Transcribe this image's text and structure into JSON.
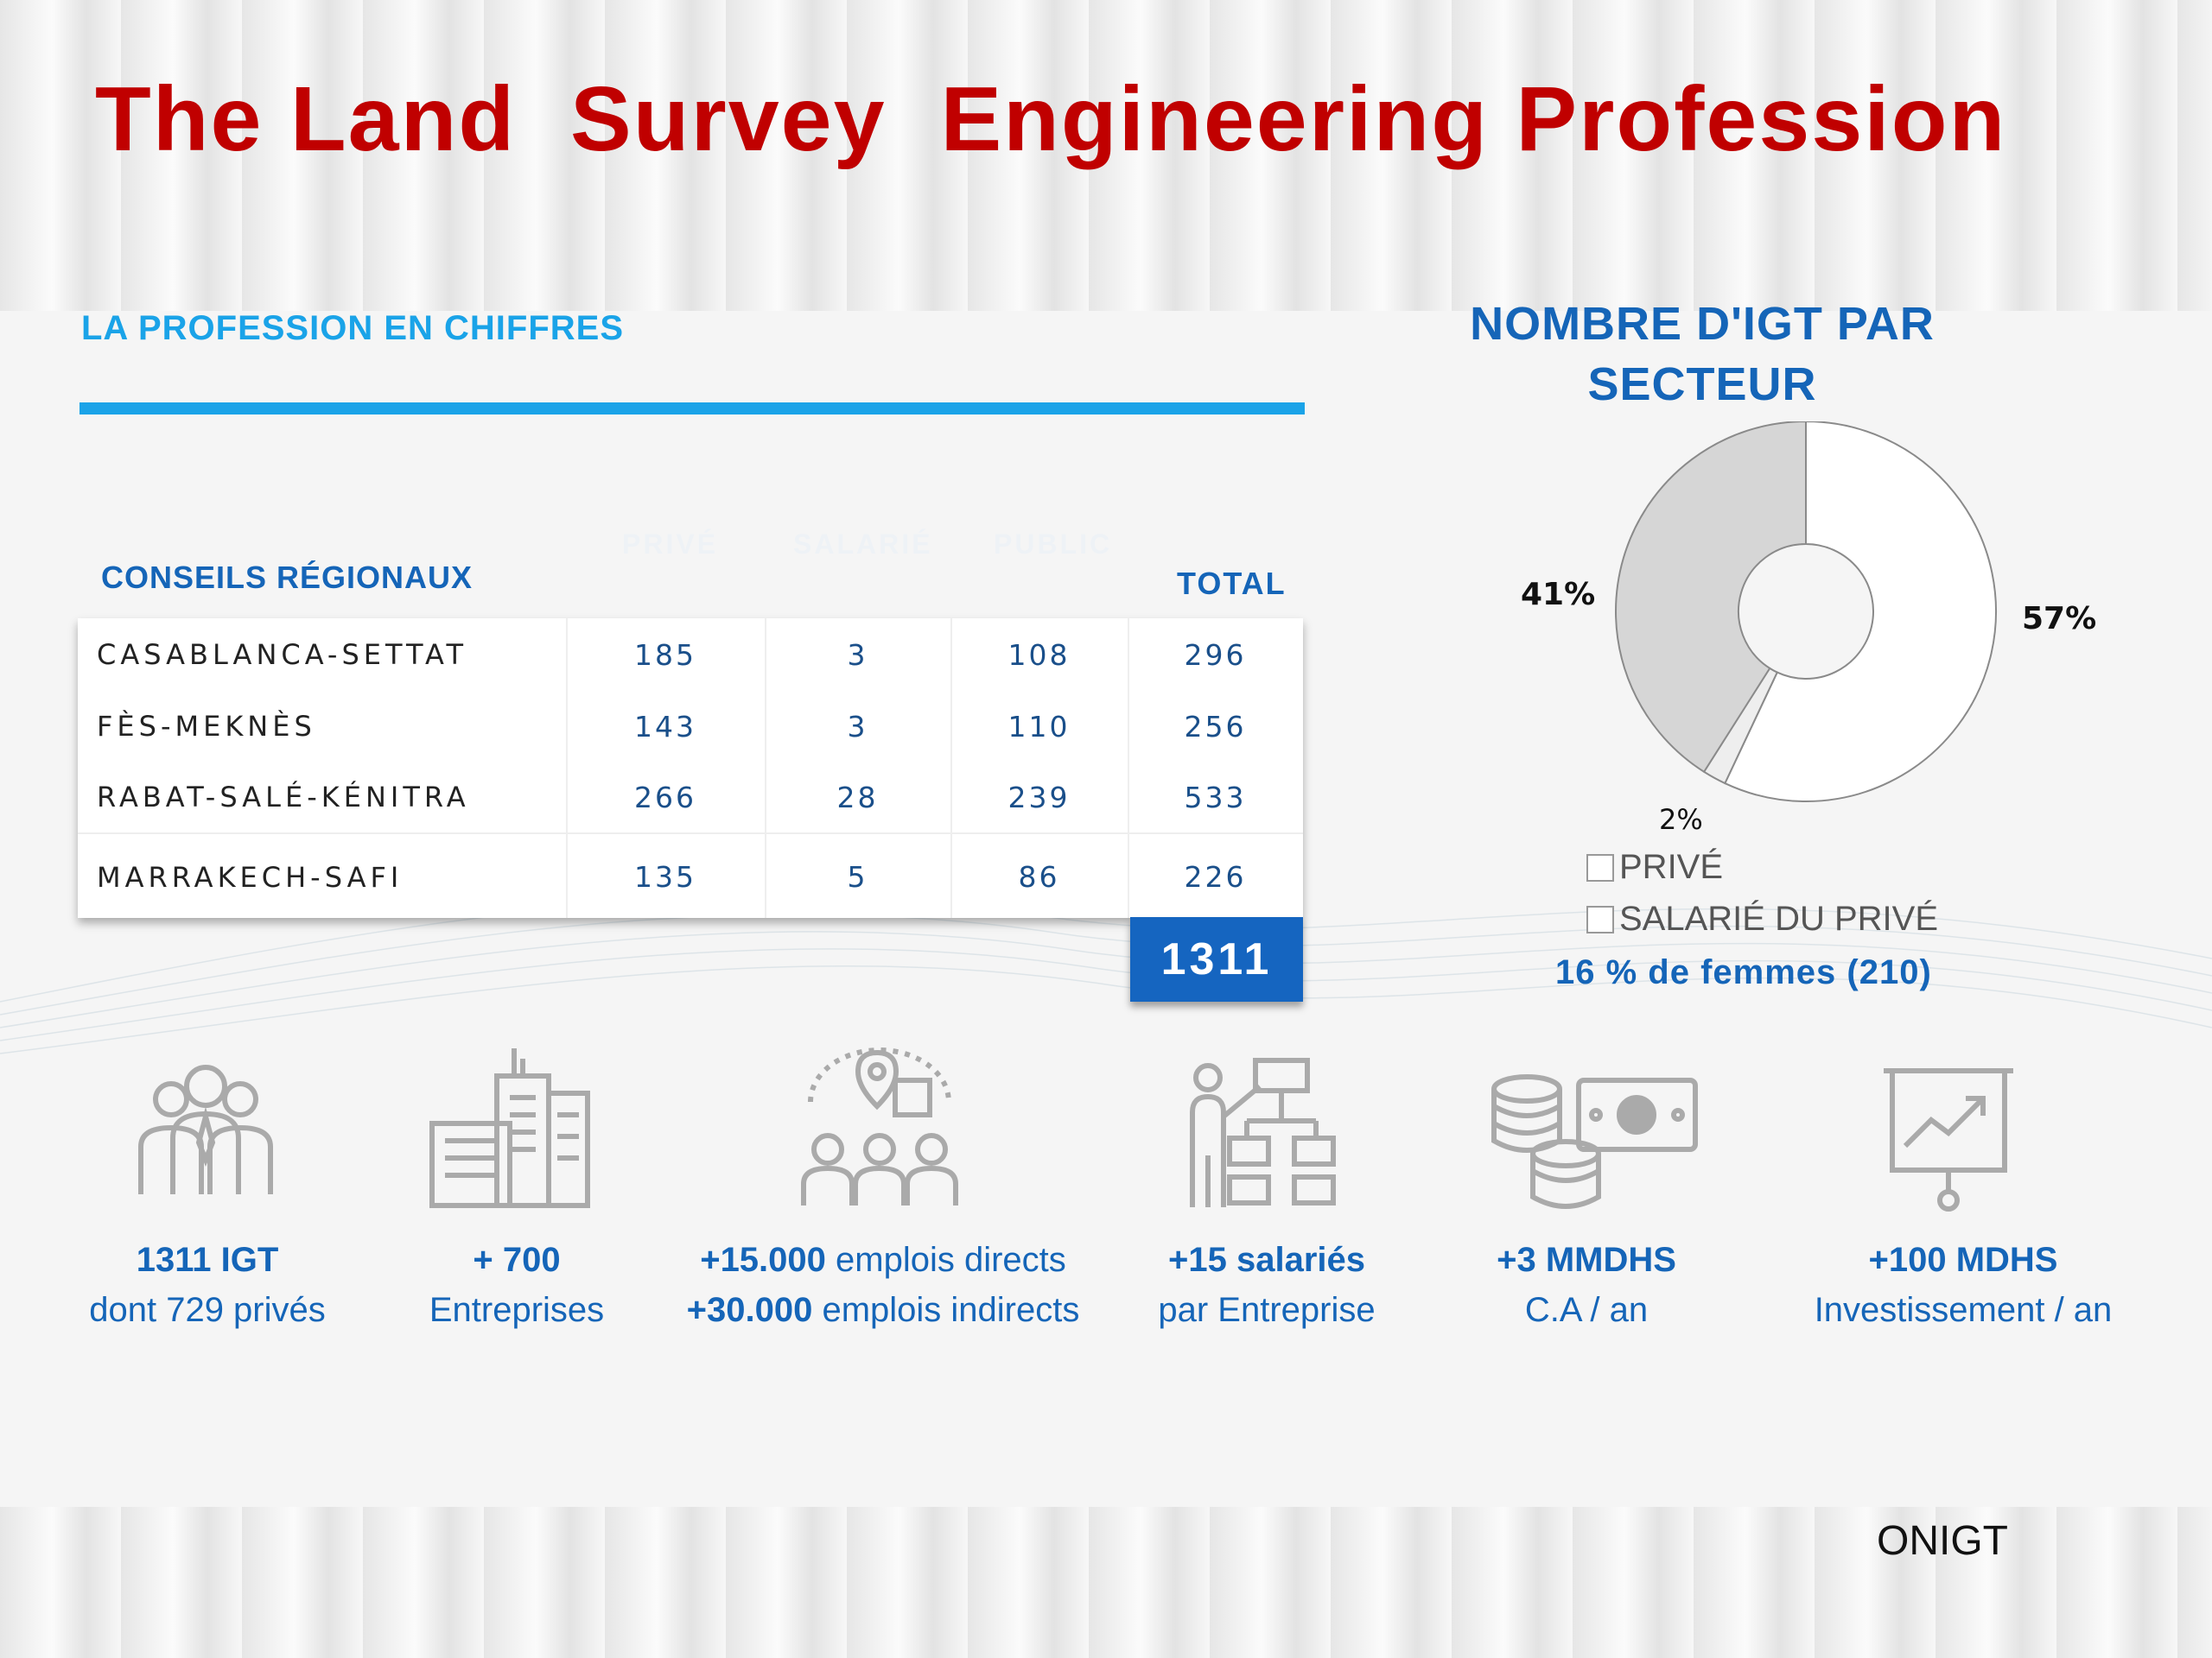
{
  "title": "The Land  Survey  Engineering Profession",
  "section_title": "LA PROFESSION EN CHIFFRES",
  "table": {
    "ghost_headers": [
      "PRIVÉ",
      "SALARIÉ",
      "PUBLIC"
    ],
    "header_region": "CONSEILS RÉGIONAUX",
    "header_total": "TOTAL",
    "rows": [
      {
        "region": "CASABLANCA-SETTAT",
        "prive": "185",
        "salarie": "3",
        "public": "108",
        "total": "296"
      },
      {
        "region": "FÈS-MEKNÈS",
        "prive": "143",
        "salarie": "3",
        "public": "110",
        "total": "256"
      },
      {
        "region": "RABAT-SALÉ-KÉNITRA",
        "prive": "266",
        "salarie": "28",
        "public": "239",
        "total": "533"
      },
      {
        "region": "MARRAKECH-SAFI",
        "prive": "135",
        "salarie": "5",
        "public": "86",
        "total": "226"
      }
    ],
    "grand_total": "1311"
  },
  "chart_data": {
    "type": "pie",
    "title": "NOMBRE D'IGT PAR SECTEUR",
    "slices": [
      {
        "label": "PRIVÉ",
        "value": 57,
        "display": "57%",
        "color": "#ffffff"
      },
      {
        "label": "SALARIÉ DU PRIVÉ",
        "value": 2,
        "display": "2%",
        "color": "#eeeeee"
      },
      {
        "label": "",
        "value": 41,
        "display": "41%",
        "color": "#d6d6d6"
      }
    ],
    "legend": [
      "PRIVÉ",
      "SALARIÉ DU PRIVÉ"
    ],
    "legend_position": "bottom-left",
    "donut": true
  },
  "women_note": "16 % de femmes (210)",
  "stats": [
    {
      "icon": "people-group-icon",
      "line1_bold": "1311 IGT",
      "line1_rest": "",
      "line2_bold": "",
      "line2_rest": "dont 729 privés"
    },
    {
      "icon": "buildings-icon",
      "line1_bold": "+ 700",
      "line1_rest": "",
      "line2_bold": "",
      "line2_rest": "Entreprises"
    },
    {
      "icon": "location-network-icon",
      "line1_bold": "+15.000",
      "line1_rest": " emplois directs",
      "line2_bold": "+30.000",
      "line2_rest": " emplois indirects"
    },
    {
      "icon": "org-chart-presenter-icon",
      "line1_bold": "+15 salariés",
      "line1_rest": "",
      "line2_bold": "",
      "line2_rest": "par Entreprise"
    },
    {
      "icon": "coins-banknote-icon",
      "line1_bold": "+3 MMDHS",
      "line1_rest": "",
      "line2_bold": "",
      "line2_rest": "C.A / an"
    },
    {
      "icon": "growth-chart-board-icon",
      "line1_bold": "+100 MDHS",
      "line1_rest": "",
      "line2_bold": "",
      "line2_rest": "Investissement / an"
    }
  ],
  "footer": "ONIGT"
}
